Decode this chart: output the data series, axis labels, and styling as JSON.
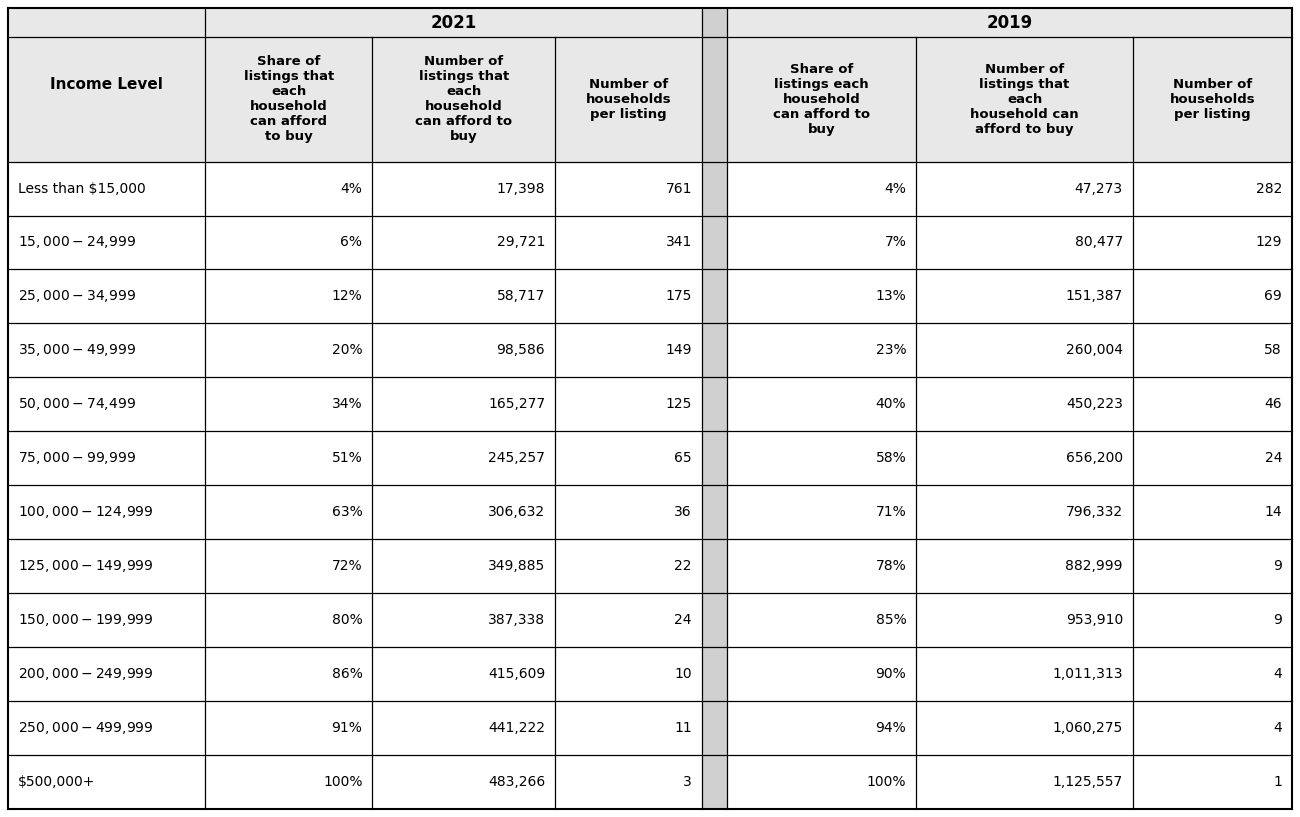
{
  "income_levels": [
    "Less than $15,000",
    "$15,000-$24,999",
    "$25,000-$34,999",
    "$35,000-$49,999",
    "$50,000-$74,499",
    "$75,000-$99,999",
    "$100,000-$124,999",
    "$125,000-$149,999",
    "$150,000-$199,999",
    "$200,000-$249,999",
    "$250,000-$499,999",
    "$500,000+"
  ],
  "col_2021_share": [
    "4%",
    "6%",
    "12%",
    "20%",
    "34%",
    "51%",
    "63%",
    "72%",
    "80%",
    "86%",
    "91%",
    "100%"
  ],
  "col_2021_number": [
    "17,398",
    "29,721",
    "58,717",
    "98,586",
    "165,277",
    "245,257",
    "306,632",
    "349,885",
    "387,338",
    "415,609",
    "441,222",
    "483,266"
  ],
  "col_2021_hh": [
    "761",
    "341",
    "175",
    "149",
    "125",
    "65",
    "36",
    "22",
    "24",
    "10",
    "11",
    "3"
  ],
  "col_2019_share": [
    "4%",
    "7%",
    "13%",
    "23%",
    "40%",
    "58%",
    "71%",
    "78%",
    "85%",
    "90%",
    "94%",
    "100%"
  ],
  "col_2019_number": [
    "47,273",
    "80,477",
    "151,387",
    "260,004",
    "450,223",
    "656,200",
    "796,332",
    "882,999",
    "953,910",
    "1,011,313",
    "1,060,275",
    "1,125,557"
  ],
  "col_2019_hh": [
    "282",
    "129",
    "69",
    "58",
    "46",
    "24",
    "14",
    "9",
    "9",
    "4",
    "4",
    "1"
  ],
  "header_2021": "2021",
  "header_2019": "2019",
  "col_header_income": "Income Level",
  "col_header_share_2021": "Share of\nlistings that\neach\nhousehold\ncan afford\nto buy",
  "col_header_number_2021": "Number of\nlistings that\neach\nhousehold\ncan afford to\nbuy",
  "col_header_hh_2021": "Number of\nhouseholds\nper listing",
  "col_header_share_2019": "Share of\nlistings each\nhousehold\ncan afford to\nbuy",
  "col_header_number_2019": "Number of\nlistings that\neach\nhousehold can\nafford to buy",
  "col_header_hh_2019": "Number of\nhouseholds\nper listing",
  "bg_header": "#e8e8e8",
  "bg_white": "#ffffff",
  "text_color": "#000000",
  "border_color": "#000000"
}
